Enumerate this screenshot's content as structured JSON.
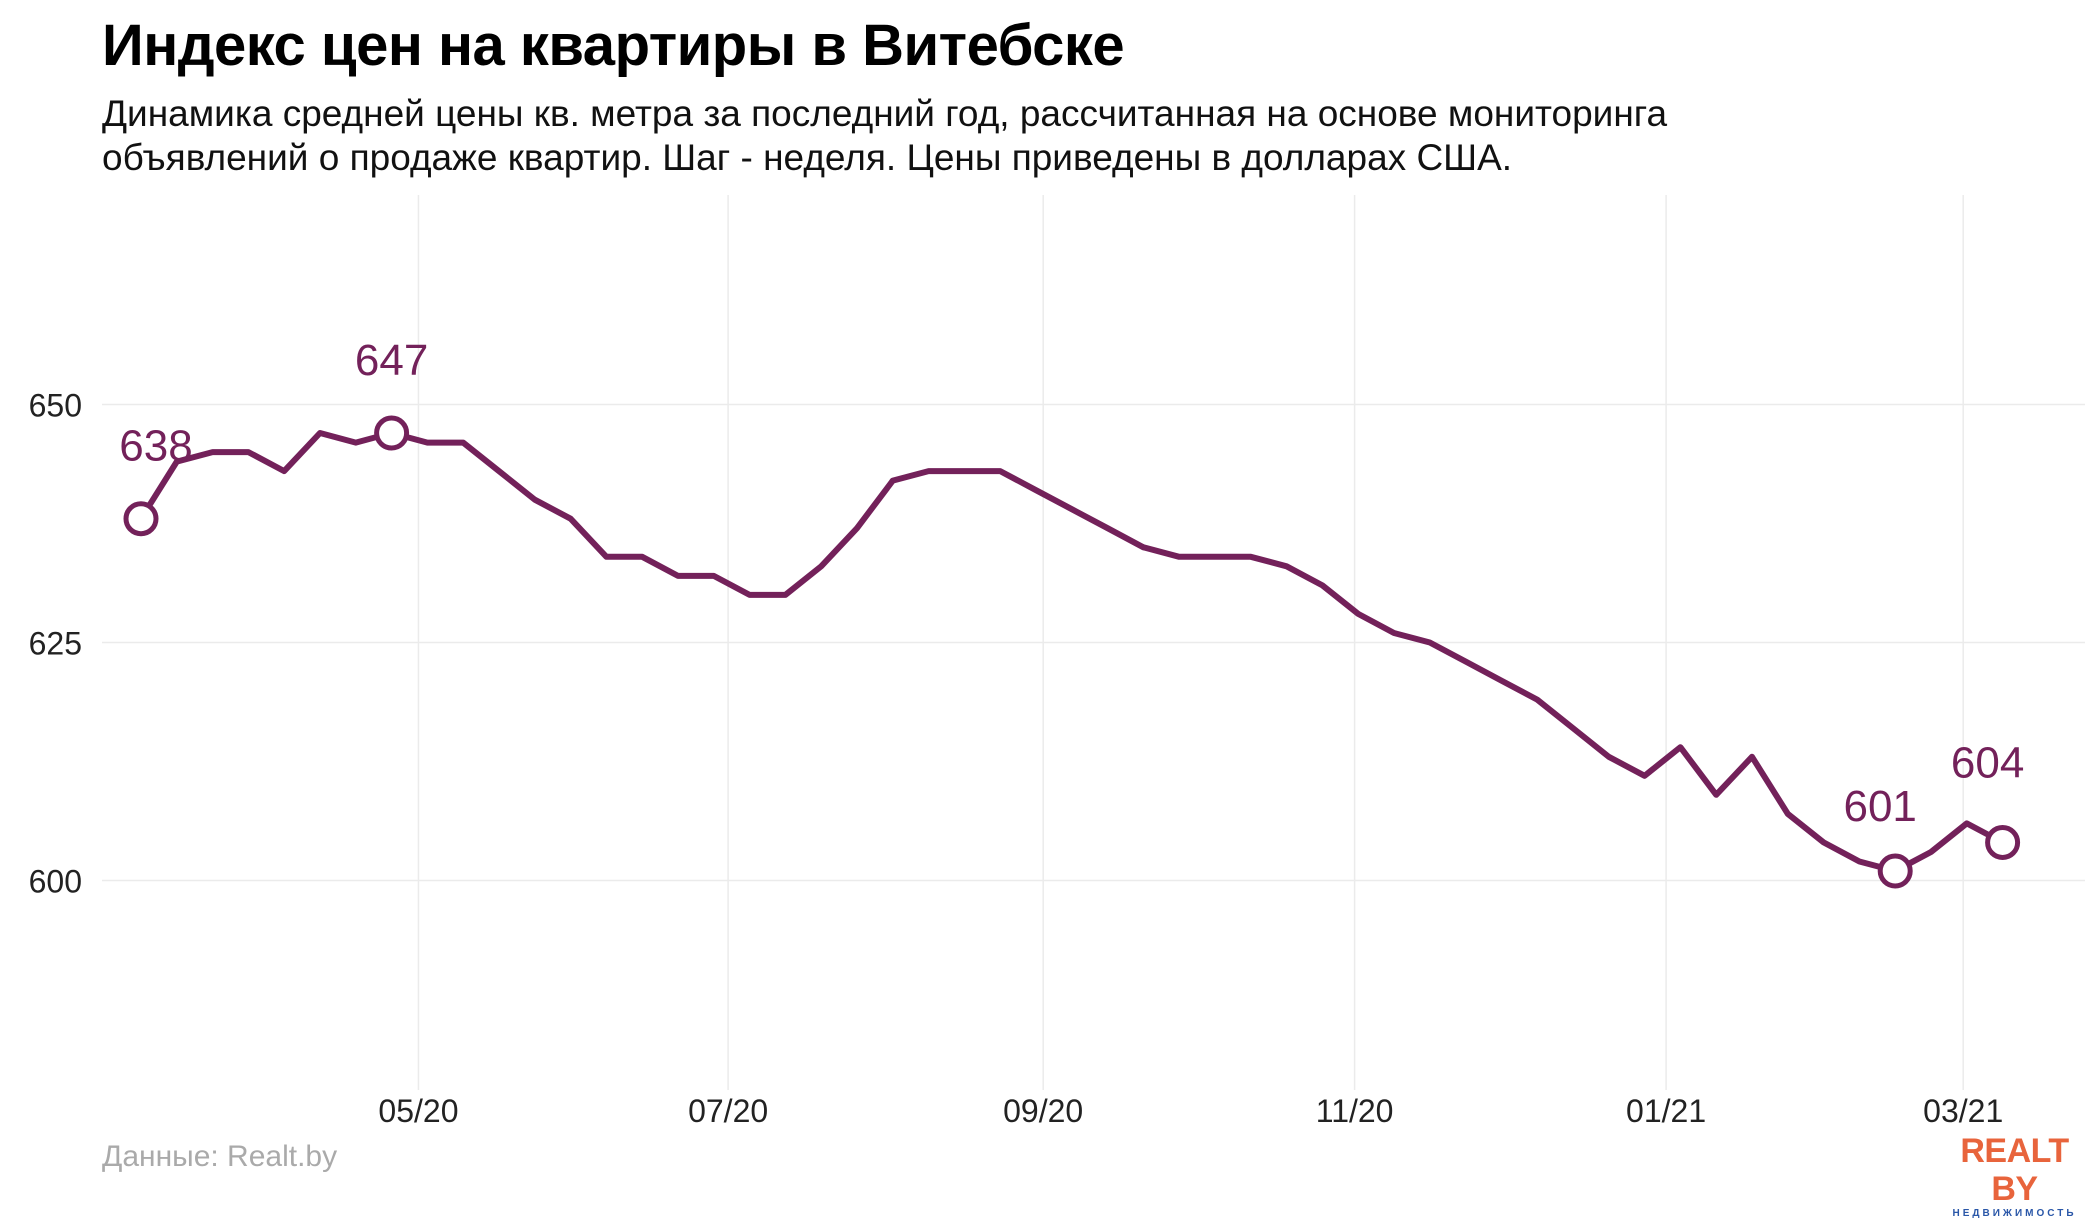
{
  "header": {
    "title": "Индекс цен на квартиры в Витебске",
    "subtitle": "Динамика средней цены кв. метра за последний год, рассчитанная на основе мониторинга объявлений о продаже квартир. Шаг - неделя. Цены приведены в долларах США."
  },
  "footer": {
    "source": "Данные: Realt.by",
    "logo_main": "REALT BY",
    "logo_sub": "НЕДВИЖИМОСТЬ"
  },
  "colors": {
    "line": "#73215a",
    "grid": "#ebebeb",
    "logo_accent": "#e8643c",
    "logo_secondary": "#2a57a8"
  },
  "chart_data": {
    "type": "line",
    "title": "Индекс цен на квартиры в Витебске",
    "xlabel": "",
    "ylabel": "",
    "ylim": [
      578,
      672
    ],
    "yticks": [
      600,
      625,
      650
    ],
    "xticks": [
      {
        "label": "05/20",
        "week": 7.75
      },
      {
        "label": "07/20",
        "week": 16.4
      },
      {
        "label": "09/20",
        "week": 25.2
      },
      {
        "label": "11/20",
        "week": 33.9
      },
      {
        "label": "01/21",
        "week": 42.6
      },
      {
        "label": "03/21",
        "week": 50.9
      }
    ],
    "grid": true,
    "legend": "none",
    "series": [
      {
        "values": [
          638,
          644,
          645,
          645,
          643,
          647,
          646,
          647,
          646,
          646,
          643,
          640,
          638,
          634,
          634,
          632,
          632,
          630,
          630,
          633,
          637,
          642,
          643,
          643,
          643,
          641,
          639,
          637,
          635,
          634,
          634,
          634,
          633,
          631,
          628,
          626,
          625,
          623,
          621,
          619,
          616,
          613,
          611,
          614,
          609,
          613,
          607,
          604,
          602,
          601,
          603,
          606,
          604
        ]
      }
    ],
    "annotations": [
      {
        "index": 0,
        "label": "638"
      },
      {
        "index": 7,
        "label": "647"
      },
      {
        "index": 49,
        "label": "601"
      },
      {
        "index": 52,
        "label": "604"
      }
    ]
  }
}
